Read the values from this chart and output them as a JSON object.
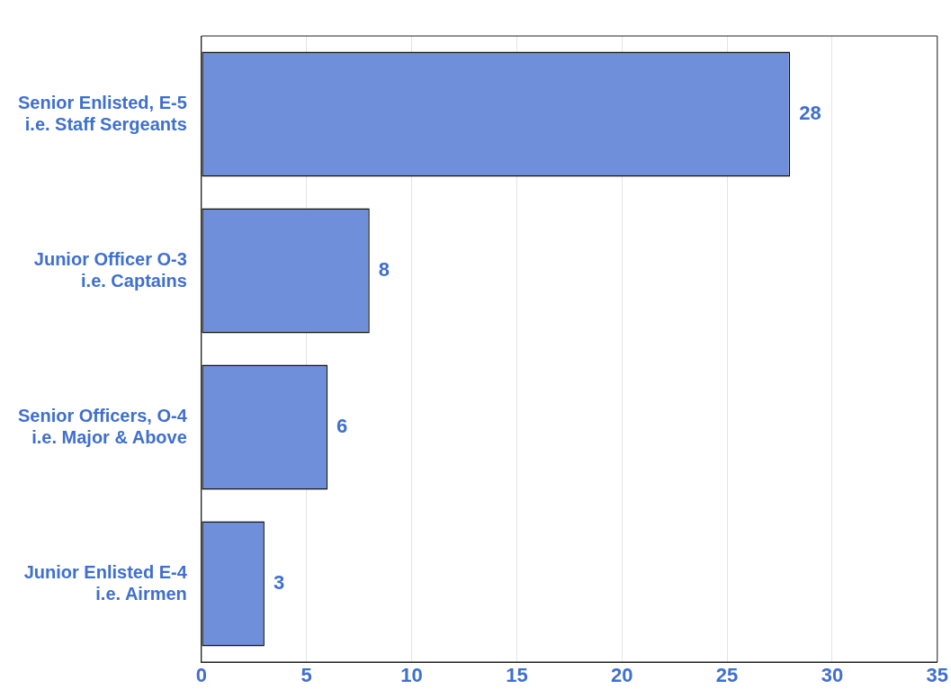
{
  "chart_data": {
    "type": "bar",
    "orientation": "horizontal",
    "categories": [
      "Senior Enlisted, E-5\ni.e. Staff Sergeants",
      "Junior Officer O-3\ni.e. Captains",
      "Senior Officers, O-4\ni.e. Major & Above",
      "Junior Enlisted E-4\ni.e. Airmen"
    ],
    "values": [
      28,
      8,
      6,
      3
    ],
    "color": "#6f8fdb",
    "xlim": [
      0,
      35
    ],
    "xticks": [
      0,
      5,
      10,
      15,
      20,
      25,
      30,
      35
    ],
    "grid": "x",
    "data_labels": true
  }
}
